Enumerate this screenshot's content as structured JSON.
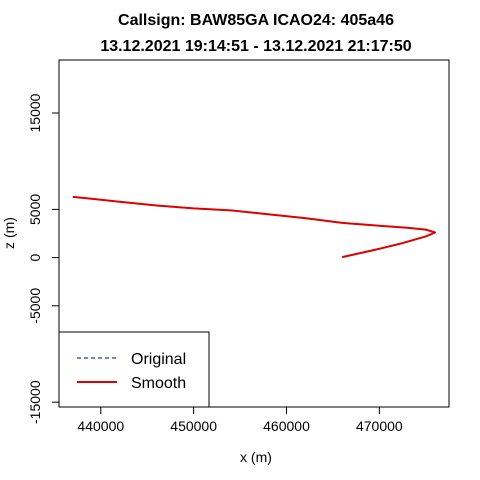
{
  "chart_data": {
    "type": "line",
    "title": "Callsign: BAW85GA  ICAO24: 405a46",
    "subtitle": "13.12.2021 19:14:51 - 13.12.2021 21:17:50",
    "xlabel": "x (m)",
    "ylabel": "z (m)",
    "xlim": [
      435500,
      477500
    ],
    "ylim": [
      -15500,
      20500
    ],
    "xticks": [
      440000,
      450000,
      460000,
      470000
    ],
    "xtick_labels": [
      "440000",
      "450000",
      "460000",
      "470000"
    ],
    "yticks": [
      -15000,
      -5000,
      0,
      5000,
      15000
    ],
    "ytick_labels": [
      "-15000",
      "-5000",
      "0",
      "5000",
      "15000"
    ],
    "grid": false,
    "legend": {
      "position": "bottom-left"
    },
    "series": [
      {
        "name": "Original",
        "color": "#00008b",
        "dash": "dashed",
        "x": [
          437000,
          439000,
          442000,
          446000,
          450000,
          454000,
          458000,
          462000,
          466000,
          470000,
          473000,
          475000,
          476000,
          475000,
          472500,
          469500,
          466000
        ],
        "z": [
          6300,
          6100,
          5800,
          5400,
          5100,
          4900,
          4500,
          4100,
          3600,
          3300,
          3100,
          2900,
          2600,
          2200,
          1500,
          800,
          50
        ]
      },
      {
        "name": "Smooth",
        "color": "#dd0000",
        "dash": "solid",
        "x": [
          437000,
          439000,
          442000,
          446000,
          450000,
          454000,
          458000,
          462000,
          466000,
          470000,
          473000,
          475000,
          476000,
          475000,
          472500,
          469500,
          466000
        ],
        "z": [
          6300,
          6100,
          5800,
          5400,
          5100,
          4900,
          4500,
          4100,
          3600,
          3300,
          3100,
          2900,
          2600,
          2200,
          1500,
          800,
          50
        ]
      }
    ]
  }
}
